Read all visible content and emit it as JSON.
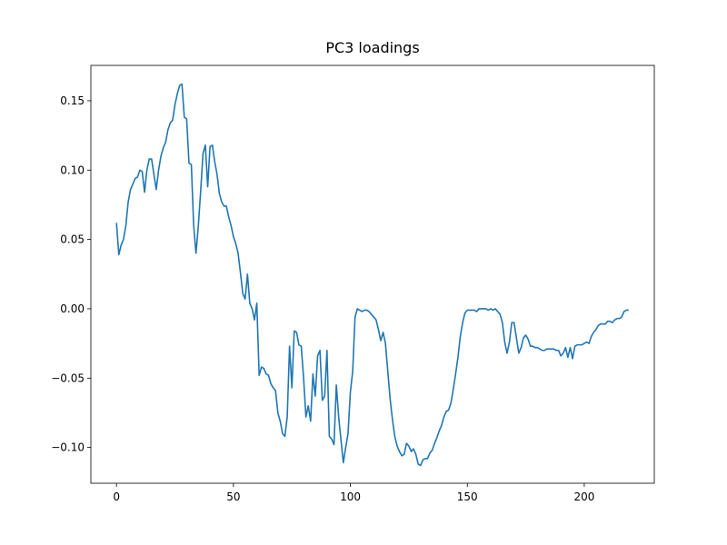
{
  "chart_data": {
    "type": "line",
    "title": "PC3 loadings",
    "x": [
      0,
      1,
      2,
      3,
      4,
      5,
      6,
      7,
      8,
      9,
      10,
      11,
      12,
      13,
      14,
      15,
      16,
      17,
      18,
      19,
      20,
      21,
      22,
      23,
      24,
      25,
      26,
      27,
      28,
      29,
      30,
      31,
      32,
      33,
      34,
      35,
      36,
      37,
      38,
      39,
      40,
      41,
      42,
      43,
      44,
      45,
      46,
      47,
      48,
      49,
      50,
      51,
      52,
      53,
      54,
      55,
      56,
      57,
      58,
      59,
      60,
      61,
      62,
      63,
      64,
      65,
      66,
      67,
      68,
      69,
      70,
      71,
      72,
      73,
      74,
      75,
      76,
      77,
      78,
      79,
      80,
      81,
      82,
      83,
      84,
      85,
      86,
      87,
      88,
      89,
      90,
      91,
      92,
      93,
      94,
      95,
      96,
      97,
      98,
      99,
      100,
      101,
      102,
      103,
      104,
      105,
      106,
      107,
      108,
      109,
      110,
      111,
      112,
      113,
      114,
      115,
      116,
      117,
      118,
      119,
      120,
      121,
      122,
      123,
      124,
      125,
      126,
      127,
      128,
      129,
      130,
      131,
      132,
      133,
      134,
      135,
      136,
      137,
      138,
      139,
      140,
      141,
      142,
      143,
      144,
      145,
      146,
      147,
      148,
      149,
      150,
      151,
      152,
      153,
      154,
      155,
      156,
      157,
      158,
      159,
      160,
      161,
      162,
      163,
      164,
      165,
      166,
      167,
      168,
      169,
      170,
      171,
      172,
      173,
      174,
      175,
      176,
      177,
      178,
      179,
      180,
      181,
      182,
      183,
      184,
      185,
      186,
      187,
      188,
      189,
      190,
      191,
      192,
      193,
      194,
      195,
      196,
      197,
      198,
      199,
      200,
      201,
      202,
      203,
      204,
      205,
      206,
      207,
      208,
      209,
      210,
      211,
      212,
      213,
      214,
      215,
      216,
      217,
      218,
      219
    ],
    "series": [
      {
        "color": "#1f77b4",
        "values": [
          0.062,
          0.039,
          0.046,
          0.05,
          0.06,
          0.077,
          0.086,
          0.09,
          0.094,
          0.095,
          0.1,
          0.099,
          0.084,
          0.1,
          0.108,
          0.108,
          0.097,
          0.086,
          0.1,
          0.11,
          0.116,
          0.12,
          0.129,
          0.134,
          0.136,
          0.147,
          0.155,
          0.161,
          0.162,
          0.138,
          0.137,
          0.105,
          0.104,
          0.06,
          0.04,
          0.06,
          0.085,
          0.112,
          0.118,
          0.088,
          0.117,
          0.118,
          0.106,
          0.097,
          0.083,
          0.077,
          0.074,
          0.074,
          0.066,
          0.06,
          0.052,
          0.047,
          0.04,
          0.026,
          0.011,
          0.007,
          0.025,
          0.004,
          0.0,
          -0.008,
          0.004,
          -0.048,
          -0.042,
          -0.043,
          -0.047,
          -0.048,
          -0.054,
          -0.057,
          -0.059,
          -0.075,
          -0.081,
          -0.09,
          -0.092,
          -0.078,
          -0.027,
          -0.057,
          -0.016,
          -0.017,
          -0.026,
          -0.027,
          -0.05,
          -0.078,
          -0.07,
          -0.081,
          -0.047,
          -0.063,
          -0.034,
          -0.03,
          -0.066,
          -0.063,
          -0.03,
          -0.092,
          -0.094,
          -0.098,
          -0.055,
          -0.078,
          -0.095,
          -0.111,
          -0.1,
          -0.09,
          -0.06,
          -0.045,
          -0.006,
          0.0,
          -0.001,
          -0.002,
          -0.001,
          -0.001,
          -0.002,
          -0.004,
          -0.006,
          -0.008,
          -0.015,
          -0.023,
          -0.017,
          -0.025,
          -0.045,
          -0.065,
          -0.08,
          -0.092,
          -0.099,
          -0.103,
          -0.106,
          -0.105,
          -0.097,
          -0.099,
          -0.103,
          -0.101,
          -0.105,
          -0.112,
          -0.113,
          -0.109,
          -0.108,
          -0.108,
          -0.104,
          -0.102,
          -0.097,
          -0.093,
          -0.088,
          -0.084,
          -0.078,
          -0.074,
          -0.073,
          -0.068,
          -0.058,
          -0.047,
          -0.035,
          -0.02,
          -0.01,
          -0.003,
          -0.001,
          -0.001,
          -0.001,
          -0.001,
          -0.002,
          0.0,
          0.0,
          0.0,
          0.0,
          -0.001,
          0.0,
          -0.001,
          0.0,
          -0.002,
          -0.004,
          -0.01,
          -0.024,
          -0.032,
          -0.024,
          -0.01,
          -0.01,
          -0.021,
          -0.032,
          -0.028,
          -0.021,
          -0.019,
          -0.022,
          -0.027,
          -0.027,
          -0.028,
          -0.028,
          -0.029,
          -0.03,
          -0.03,
          -0.029,
          -0.029,
          -0.029,
          -0.029,
          -0.03,
          -0.03,
          -0.034,
          -0.032,
          -0.028,
          -0.035,
          -0.028,
          -0.036,
          -0.027,
          -0.026,
          -0.026,
          -0.026,
          -0.025,
          -0.024,
          -0.025,
          -0.02,
          -0.017,
          -0.015,
          -0.012,
          -0.011,
          -0.011,
          -0.011,
          -0.009,
          -0.009,
          -0.01,
          -0.008,
          -0.007,
          -0.007,
          -0.006,
          -0.002,
          -0.001,
          -0.001
        ]
      }
    ],
    "xlim": [
      -10.95,
      229.95
    ],
    "ylim": [
      -0.1258,
      0.1755
    ],
    "xticks": [
      0,
      50,
      100,
      150,
      200
    ],
    "yticks": [
      {
        "value": -0.1,
        "label": "−0.10"
      },
      {
        "value": -0.05,
        "label": "−0.05"
      },
      {
        "value": 0,
        "label": "0.00"
      },
      {
        "value": 0.05,
        "label": "0.05"
      },
      {
        "value": 0.1,
        "label": "0.10"
      },
      {
        "value": 0.15,
        "label": "0.15"
      }
    ],
    "grid": false
  }
}
